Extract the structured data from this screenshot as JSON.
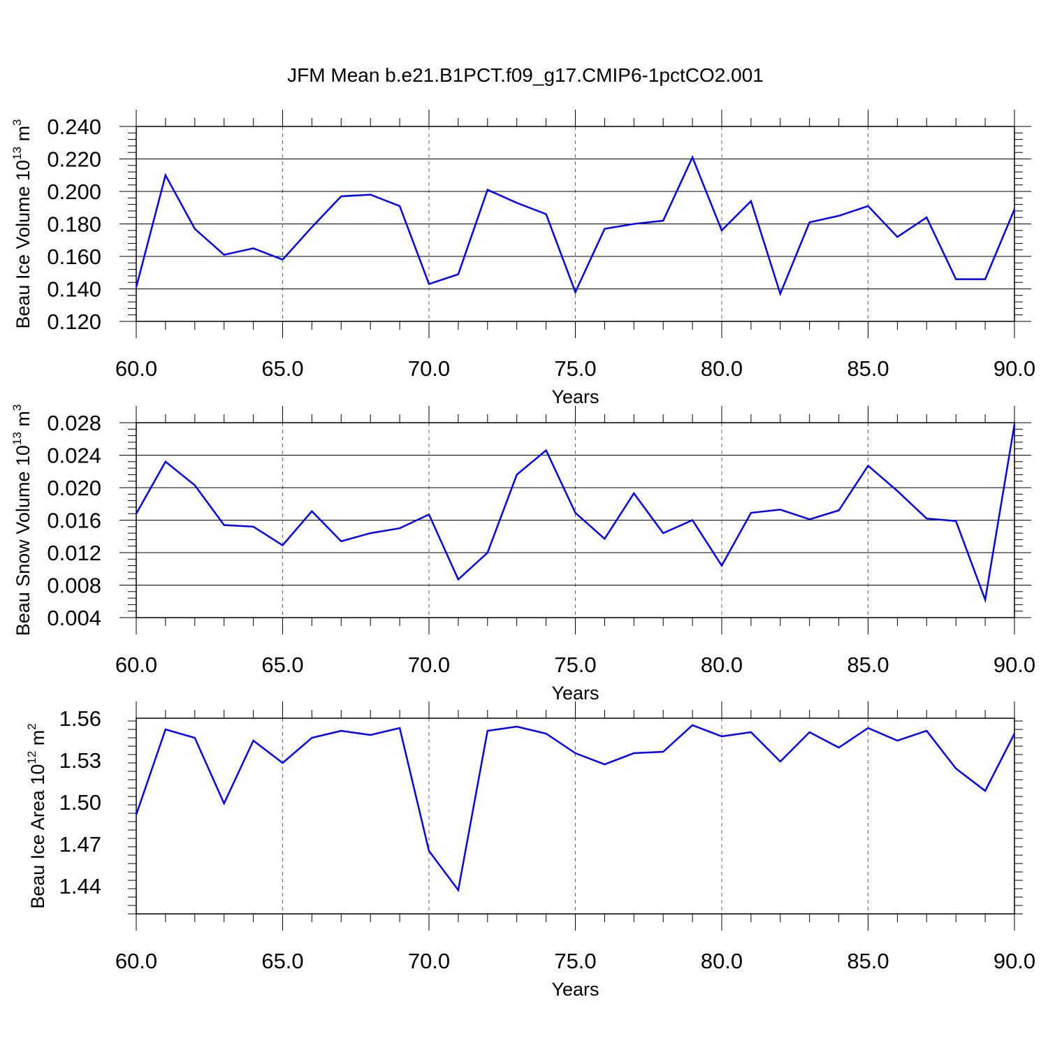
{
  "figure": {
    "title": "JFM Mean b.e21.B1PCT.f09_g17.CMIP6-1pctCO2.001"
  },
  "chart_data": [
    {
      "type": "line",
      "title": "",
      "xlabel": "Years",
      "ylabel": {
        "base": "Beau Ice Volume 10",
        "exp": "13",
        "unit": " m",
        "unit_exp": "3"
      },
      "xlim": [
        60,
        90
      ],
      "ylim": [
        0.12,
        0.24
      ],
      "x_ticks": [
        60,
        65,
        70,
        75,
        80,
        85,
        90
      ],
      "x_tick_labels": [
        "60.0",
        "65.0",
        "70.0",
        "75.0",
        "80.0",
        "85.0",
        "90.0"
      ],
      "y_ticks": [
        0.12,
        0.14,
        0.16,
        0.18,
        0.2,
        0.22,
        0.24
      ],
      "y_tick_labels": [
        "0.120",
        "0.140",
        "0.160",
        "0.180",
        "0.200",
        "0.220",
        "0.240"
      ],
      "grid": "vertical dashed at major x ticks",
      "line_color": "#0000ff",
      "x": [
        60,
        61,
        62,
        63,
        64,
        65,
        66,
        67,
        68,
        69,
        70,
        71,
        72,
        73,
        74,
        75,
        76,
        77,
        78,
        79,
        80,
        81,
        82,
        83,
        84,
        85,
        86,
        87,
        88,
        89,
        90
      ],
      "values": [
        0.141,
        0.21,
        0.177,
        0.161,
        0.165,
        0.158,
        0.178,
        0.197,
        0.198,
        0.191,
        0.143,
        0.149,
        0.201,
        0.193,
        0.186,
        0.138,
        0.177,
        0.18,
        0.182,
        0.221,
        0.176,
        0.194,
        0.137,
        0.181,
        0.185,
        0.191,
        0.172,
        0.184,
        0.146,
        0.146,
        0.189
      ]
    },
    {
      "type": "line",
      "title": "",
      "xlabel": "Years",
      "ylabel": {
        "base": "Beau Snow Volume 10",
        "exp": "13",
        "unit": " m",
        "unit_exp": "3"
      },
      "xlim": [
        60,
        90
      ],
      "ylim": [
        0.004,
        0.028
      ],
      "x_ticks": [
        60,
        65,
        70,
        75,
        80,
        85,
        90
      ],
      "x_tick_labels": [
        "60.0",
        "65.0",
        "70.0",
        "75.0",
        "80.0",
        "85.0",
        "90.0"
      ],
      "y_ticks": [
        0.004,
        0.008,
        0.012,
        0.016,
        0.02,
        0.024,
        0.028
      ],
      "y_tick_labels": [
        "0.004",
        "0.008",
        "0.012",
        "0.016",
        "0.020",
        "0.024",
        "0.028"
      ],
      "grid": "vertical dashed at major x ticks",
      "line_color": "#0000ff",
      "x": [
        60,
        61,
        62,
        63,
        64,
        65,
        66,
        67,
        68,
        69,
        70,
        71,
        72,
        73,
        74,
        75,
        76,
        77,
        78,
        79,
        80,
        81,
        82,
        83,
        84,
        85,
        86,
        87,
        88,
        89,
        90
      ],
      "values": [
        0.0168,
        0.0232,
        0.0203,
        0.0154,
        0.0152,
        0.0129,
        0.0171,
        0.0134,
        0.0144,
        0.015,
        0.0167,
        0.0087,
        0.012,
        0.0216,
        0.0246,
        0.0169,
        0.0137,
        0.0193,
        0.0144,
        0.016,
        0.0104,
        0.0169,
        0.0173,
        0.0161,
        0.0172,
        0.0227,
        0.0196,
        0.0162,
        0.0159,
        0.0062,
        0.0278
      ]
    },
    {
      "type": "line",
      "title": "",
      "xlabel": "Years",
      "ylabel": {
        "base": "Beau Ice Area 10",
        "exp": "12",
        "unit": " m",
        "unit_exp": "2"
      },
      "xlim": [
        60,
        90
      ],
      "ylim": [
        1.42,
        1.56
      ],
      "x_ticks": [
        60,
        65,
        70,
        75,
        80,
        85,
        90
      ],
      "x_tick_labels": [
        "60.0",
        "65.0",
        "70.0",
        "75.0",
        "80.0",
        "85.0",
        "90.0"
      ],
      "y_ticks": [
        1.44,
        1.47,
        1.5,
        1.53,
        1.56
      ],
      "y_tick_labels": [
        "1.44",
        "1.47",
        "1.50",
        "1.53",
        "1.56"
      ],
      "grid": "vertical dashed at major x ticks",
      "line_color": "#0000ff",
      "x": [
        60,
        61,
        62,
        63,
        64,
        65,
        66,
        67,
        68,
        69,
        70,
        71,
        72,
        73,
        74,
        75,
        76,
        77,
        78,
        79,
        80,
        81,
        82,
        83,
        84,
        85,
        86,
        87,
        88,
        89,
        90
      ],
      "values": [
        1.491,
        1.552,
        1.546,
        1.499,
        1.544,
        1.528,
        1.546,
        1.551,
        1.548,
        1.553,
        1.465,
        1.437,
        1.551,
        1.554,
        1.549,
        1.535,
        1.527,
        1.535,
        1.536,
        1.555,
        1.547,
        1.55,
        1.529,
        1.55,
        1.539,
        1.553,
        1.544,
        1.551,
        1.524,
        1.508,
        1.549
      ]
    }
  ]
}
